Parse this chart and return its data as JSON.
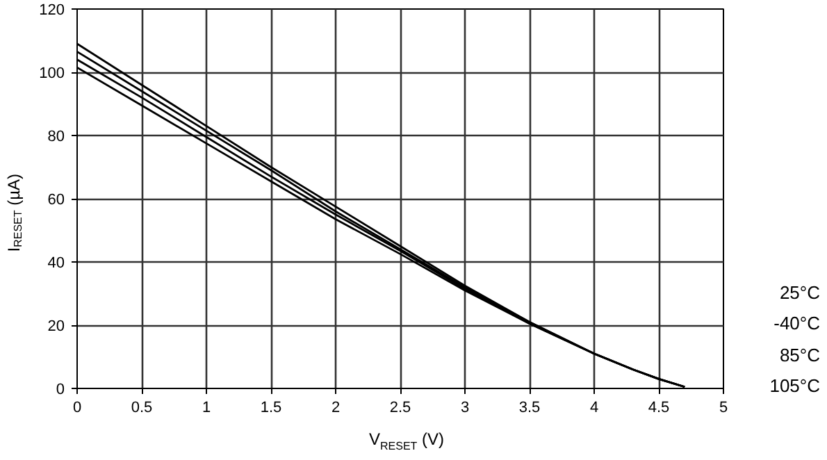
{
  "chart_data": {
    "type": "line",
    "xlabel": "V$_{RESET}$ (V)",
    "ylabel": "I$_{RESET}$ (µA)",
    "x": [
      0,
      0.5,
      1,
      1.5,
      2,
      2.5,
      3,
      3.5,
      4,
      4.3,
      4.5,
      4.7
    ],
    "series": [
      {
        "name": "25°C",
        "color": "#000000",
        "values": [
          109,
          96,
          83,
          70,
          57.5,
          45,
          32.5,
          21,
          11,
          6,
          3,
          0.5
        ]
      },
      {
        "name": "-40°C",
        "color": "#000000",
        "values": [
          106.5,
          94,
          81.5,
          69,
          56,
          44,
          32,
          21,
          11,
          6,
          3,
          0.5
        ]
      },
      {
        "name": "85°C",
        "color": "#000000",
        "values": [
          104,
          92,
          79.5,
          67,
          55,
          43.5,
          31.5,
          20.5,
          11,
          6,
          3,
          0.5
        ]
      },
      {
        "name": "105°C",
        "color": "#000000",
        "values": [
          101.5,
          89.5,
          77.5,
          65.5,
          53.5,
          42.5,
          31,
          20.5,
          11,
          6,
          3,
          0.5
        ]
      }
    ],
    "xlim": [
      0,
      5
    ],
    "xticks": [
      0,
      0.5,
      1,
      1.5,
      2,
      2.5,
      3,
      3.5,
      4,
      4.5,
      5
    ],
    "ylim": [
      0,
      120
    ],
    "yticks": [
      0,
      20,
      40,
      60,
      80,
      100,
      120
    ],
    "grid": true,
    "line_style": "solid",
    "marker": "none"
  }
}
